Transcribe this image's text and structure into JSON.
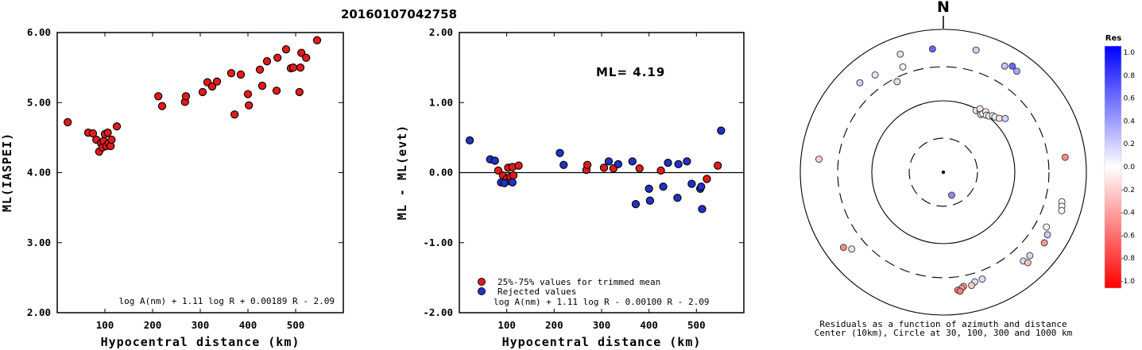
{
  "title": "20160107042758",
  "chart_data": [
    {
      "type": "scatter",
      "xlabel": "Hypocentral distance (km)",
      "ylabel": "ML(IASPEI)",
      "xlim": [
        0,
        600
      ],
      "ylim": [
        2.0,
        6.0
      ],
      "xticks": [
        "100",
        "200",
        "300",
        "400",
        "500"
      ],
      "yticks": [
        "2.00",
        "3.00",
        "4.00",
        "5.00",
        "6.00"
      ],
      "annotation": "log A(nm) + 1.11 log R + 0.00189 R - 2.09",
      "series": [
        {
          "color": "#e31a1c",
          "points": [
            [
              22,
              4.72
            ],
            [
              65,
              4.57
            ],
            [
              75,
              4.56
            ],
            [
              82,
              4.47
            ],
            [
              88,
              4.3
            ],
            [
              92,
              4.42
            ],
            [
              95,
              4.36
            ],
            [
              97,
              4.45
            ],
            [
              100,
              4.55
            ],
            [
              103,
              4.38
            ],
            [
              106,
              4.57
            ],
            [
              108,
              4.42
            ],
            [
              112,
              4.38
            ],
            [
              114,
              4.47
            ],
            [
              125,
              4.66
            ],
            [
              212,
              5.09
            ],
            [
              220,
              4.95
            ],
            [
              268,
              5.01
            ],
            [
              270,
              5.09
            ],
            [
              305,
              5.15
            ],
            [
              315,
              5.29
            ],
            [
              325,
              5.23
            ],
            [
              335,
              5.3
            ],
            [
              365,
              5.42
            ],
            [
              372,
              4.83
            ],
            [
              385,
              5.4
            ],
            [
              400,
              5.12
            ],
            [
              402,
              4.96
            ],
            [
              425,
              5.47
            ],
            [
              430,
              5.24
            ],
            [
              440,
              5.59
            ],
            [
              460,
              5.17
            ],
            [
              462,
              5.64
            ],
            [
              480,
              5.76
            ],
            [
              490,
              5.49
            ],
            [
              495,
              5.5
            ],
            [
              508,
              5.15
            ],
            [
              510,
              5.5
            ],
            [
              512,
              5.71
            ],
            [
              522,
              5.64
            ],
            [
              545,
              5.89
            ]
          ]
        }
      ]
    },
    {
      "type": "scatter",
      "xlabel": "Hypocentral distance (km)",
      "ylabel": "ML - ML(evt)",
      "xlim": [
        0,
        600
      ],
      "ylim": [
        -2.0,
        2.0
      ],
      "xticks": [
        "100",
        "200",
        "300",
        "400",
        "500"
      ],
      "yticks": [
        "-2.00",
        "-1.00",
        "0.00",
        "1.00",
        "2.00"
      ],
      "ml_label": "ML= 4.19",
      "annotation": "log A(nm) + 1.11 log R - 0.00100 R - 2.09",
      "legend": {
        "position": "bottom-left",
        "entries": [
          "25%-75% values for trimmed mean",
          "Rejected values"
        ]
      },
      "series": [
        {
          "name": "25%-75% values for trimmed mean",
          "color": "#e31a1c",
          "points": [
            [
              82,
              0.03
            ],
            [
              92,
              -0.04
            ],
            [
              97,
              -0.12
            ],
            [
              100,
              -0.09
            ],
            [
              103,
              0.07
            ],
            [
              106,
              -0.12
            ],
            [
              108,
              -0.06
            ],
            [
              112,
              0.08
            ],
            [
              114,
              -0.04
            ],
            [
              125,
              0.1
            ],
            [
              268,
              0.04
            ],
            [
              270,
              0.11
            ],
            [
              305,
              0.07
            ],
            [
              325,
              0.06
            ],
            [
              380,
              0.06
            ],
            [
              425,
              0.03
            ],
            [
              522,
              -0.09
            ],
            [
              545,
              0.1
            ]
          ]
        },
        {
          "name": "Rejected values",
          "color": "#1f33c8",
          "points": [
            [
              22,
              0.46
            ],
            [
              65,
              0.19
            ],
            [
              75,
              0.17
            ],
            [
              88,
              -0.14
            ],
            [
              95,
              -0.15
            ],
            [
              112,
              -0.14
            ],
            [
              212,
              0.28
            ],
            [
              220,
              0.11
            ],
            [
              315,
              0.16
            ],
            [
              335,
              0.12
            ],
            [
              365,
              0.16
            ],
            [
              372,
              -0.45
            ],
            [
              400,
              -0.23
            ],
            [
              402,
              -0.4
            ],
            [
              430,
              -0.2
            ],
            [
              440,
              0.14
            ],
            [
              460,
              -0.36
            ],
            [
              462,
              0.12
            ],
            [
              480,
              0.16
            ],
            [
              490,
              -0.16
            ],
            [
              508,
              -0.23
            ],
            [
              510,
              -0.2
            ],
            [
              512,
              -0.52
            ],
            [
              552,
              0.6
            ]
          ]
        }
      ]
    },
    {
      "type": "scatter",
      "subtype": "polar",
      "north_label": "N",
      "caption_line1": "Residuals as a function of azimuth and distance",
      "caption_line2": "Center (10km), Circle at 30, 100, 300 and 1000 km",
      "rings_km": [
        30,
        100,
        300,
        1000
      ],
      "colorbar": {
        "title": "Res",
        "range": [
          -1.0,
          1.0
        ],
        "ticks": [
          "1.0",
          "0.8",
          "0.6",
          "0.4",
          "0.2",
          "0.0",
          "-0.2",
          "-0.4",
          "-0.6",
          "-0.8",
          "-1.0"
        ],
        "low_color": "#ff0000",
        "mid_color": "#ffffff",
        "high_color": "#0000ff"
      },
      "points": [
        {
          "az": 160,
          "dist": 22,
          "res": 0.46
        },
        {
          "az": 339,
          "dist": 380,
          "res": 0.06
        },
        {
          "az": 333,
          "dist": 265,
          "res": 0.12
        },
        {
          "az": 355,
          "dist": 540,
          "res": 0.6
        },
        {
          "az": 15,
          "dist": 590,
          "res": 0.18
        },
        {
          "az": 33,
          "dist": 590,
          "res": 0.6
        },
        {
          "az": 30,
          "dist": 520,
          "res": 0.23
        },
        {
          "az": 36,
          "dist": 560,
          "res": 0.35
        },
        {
          "az": 28,
          "dist": 95,
          "res": -0.12
        },
        {
          "az": 31,
          "dist": 100,
          "res": -0.1
        },
        {
          "az": 30,
          "dist": 106,
          "res": -0.09
        },
        {
          "az": 33,
          "dist": 92,
          "res": -0.06
        },
        {
          "az": 34,
          "dist": 97,
          "res": -0.05
        },
        {
          "az": 35,
          "dist": 108,
          "res": -0.04
        },
        {
          "az": 37,
          "dist": 100,
          "res": 0.03
        },
        {
          "az": 39,
          "dist": 103,
          "res": 0.05
        },
        {
          "az": 41,
          "dist": 112,
          "res": 0.07
        },
        {
          "az": 43,
          "dist": 114,
          "res": 0.08
        },
        {
          "az": 46,
          "dist": 122,
          "res": -0.12
        },
        {
          "az": 49,
          "dist": 140,
          "res": 0.16
        },
        {
          "az": 276,
          "dist": 560,
          "res": -0.2
        },
        {
          "az": 83,
          "dist": 520,
          "res": -0.45
        },
        {
          "az": 104,
          "dist": 510,
          "res": 0.02
        },
        {
          "az": 106,
          "dist": 530,
          "res": 0.03
        },
        {
          "az": 108,
          "dist": 550,
          "res": 0.02
        },
        {
          "az": 118,
          "dist": 430,
          "res": 0.02
        },
        {
          "az": 121,
          "dist": 500,
          "res": 0.2
        },
        {
          "az": 125,
          "dist": 530,
          "res": -0.4
        },
        {
          "az": 134,
          "dist": 480,
          "res": 0.16
        },
        {
          "az": 138,
          "dist": 470,
          "res": 0.14
        },
        {
          "az": 137,
          "dist": 540,
          "res": -0.23
        },
        {
          "az": 160,
          "dist": 390,
          "res": 0.14
        },
        {
          "az": 164,
          "dist": 395,
          "res": 0.12
        },
        {
          "az": 166,
          "dist": 430,
          "res": -0.2
        },
        {
          "az": 170,
          "dist": 420,
          "res": -0.36
        },
        {
          "az": 171,
          "dist": 440,
          "res": -0.4
        },
        {
          "az": 173,
          "dist": 460,
          "res": -0.52
        },
        {
          "az": 172,
          "dist": 480,
          "res": -0.52
        },
        {
          "az": 230,
          "dist": 470,
          "res": 0.1
        },
        {
          "az": 233,
          "dist": 560,
          "res": -0.45
        },
        {
          "az": 317,
          "dist": 515,
          "res": 0.18
        },
        {
          "az": 325,
          "dist": 460,
          "res": 0.1
        },
        {
          "az": 340,
          "dist": 575,
          "res": 0.12
        }
      ]
    }
  ]
}
